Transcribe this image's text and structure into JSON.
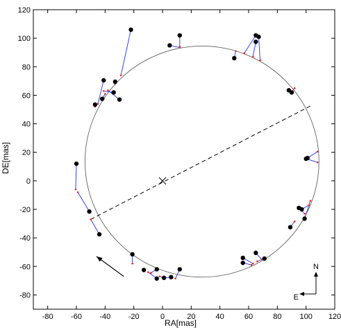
{
  "chart_data": {
    "type": "scatter",
    "xlabel": "RA[mas]",
    "ylabel": "DE[mas]",
    "xlim": [
      -90,
      120
    ],
    "ylim": [
      -90,
      120
    ],
    "xticks": [
      -80,
      -60,
      -40,
      -20,
      0,
      20,
      40,
      60,
      80,
      100,
      120
    ],
    "yticks": [
      -80,
      -60,
      -40,
      -20,
      0,
      20,
      40,
      60,
      80,
      100,
      120
    ],
    "ellipse": {
      "cx": 27.5,
      "cy": 13.5,
      "rx": 81.5,
      "ry": 81.0,
      "color": "#000000"
    },
    "center_marker": {
      "x": 0,
      "y": 0,
      "symbol": "x"
    },
    "line_of_nodes": {
      "from": [
        -50,
        -27
      ],
      "to": [
        104,
        53
      ],
      "style": "dashed"
    },
    "observations": [
      {
        "x": -60,
        "y": 12,
        "fx": -60.5,
        "fy": -6
      },
      {
        "x": -51,
        "y": -21.5,
        "fx": -59,
        "fy": -8
      },
      {
        "x": -44,
        "y": -37.5,
        "fx": -50,
        "fy": -27
      },
      {
        "x": -21,
        "y": -51.5,
        "fx": -21,
        "fy": -58
      },
      {
        "x": -13,
        "y": -62.5,
        "fx": -13,
        "fy": -62
      },
      {
        "x": -4,
        "y": -62,
        "fx": -8,
        "fy": -64.5
      },
      {
        "x": -4,
        "y": -68.5,
        "fx": -10,
        "fy": -64
      },
      {
        "x": 1,
        "y": -68,
        "fx": -2,
        "fy": -67
      },
      {
        "x": 6,
        "y": -67.5,
        "fx": 1,
        "fy": -68
      },
      {
        "x": 12,
        "y": -62,
        "fx": 9,
        "fy": -68.5
      },
      {
        "x": 56,
        "y": -54,
        "fx": 63,
        "fy": -58
      },
      {
        "x": 56,
        "y": -57.5,
        "fx": 62,
        "fy": -59
      },
      {
        "x": 65,
        "y": -50.5,
        "fx": 69,
        "fy": -55
      },
      {
        "x": 71,
        "y": -54.5,
        "fx": 66,
        "fy": -56.5
      },
      {
        "x": 89,
        "y": -32.5,
        "fx": 92,
        "fy": -28.5
      },
      {
        "x": 95,
        "y": -19,
        "fx": 99,
        "fy": -23
      },
      {
        "x": 97,
        "y": -20,
        "fx": 102,
        "fy": -17
      },
      {
        "x": 99,
        "y": -26.5,
        "fx": 103,
        "fy": -14
      },
      {
        "x": 100,
        "y": 15.5,
        "fx": 108,
        "fy": 13
      },
      {
        "x": 101,
        "y": 16,
        "fx": 108,
        "fy": 20.5
      },
      {
        "x": 88,
        "y": 63.5,
        "fx": 90,
        "fy": 62
      },
      {
        "x": 90,
        "y": 62,
        "fx": 92,
        "fy": 65
      },
      {
        "x": 50,
        "y": 86,
        "fx": 51,
        "fy": 91
      },
      {
        "x": 65,
        "y": 97.5,
        "fx": 63,
        "fy": 87
      },
      {
        "x": 65,
        "y": 102,
        "fx": 57,
        "fy": 89.5
      },
      {
        "x": 67,
        "y": 101,
        "fx": 68,
        "fy": 84.5
      },
      {
        "x": 5,
        "y": 95,
        "fx": 12,
        "fy": 93.5
      },
      {
        "x": 12,
        "y": 102,
        "fx": 12,
        "fy": 94
      },
      {
        "x": -22,
        "y": 106,
        "fx": -29,
        "fy": 74
      },
      {
        "x": -33,
        "y": 69.5,
        "fx": -33,
        "fy": 68
      },
      {
        "x": -41,
        "y": 70.5,
        "fx": -45,
        "fy": 54
      },
      {
        "x": -42,
        "y": 57.5,
        "fx": -40,
        "fy": 61
      },
      {
        "x": -34,
        "y": 62,
        "fx": -41,
        "fy": 63
      },
      {
        "x": -30,
        "y": 57,
        "fx": -38,
        "fy": 63.5
      },
      {
        "x": -47,
        "y": 53.5,
        "fx": -47,
        "fy": 52
      }
    ],
    "colors": {
      "point": "#000000",
      "residual": "#3040ff",
      "fit": "#ff2020",
      "orbit": "#606060"
    },
    "motion_arrow": {
      "from": [
        -27,
        -67
      ],
      "to": [
        -46,
        -53
      ]
    },
    "compass": {
      "north": "N",
      "east": "E"
    }
  }
}
